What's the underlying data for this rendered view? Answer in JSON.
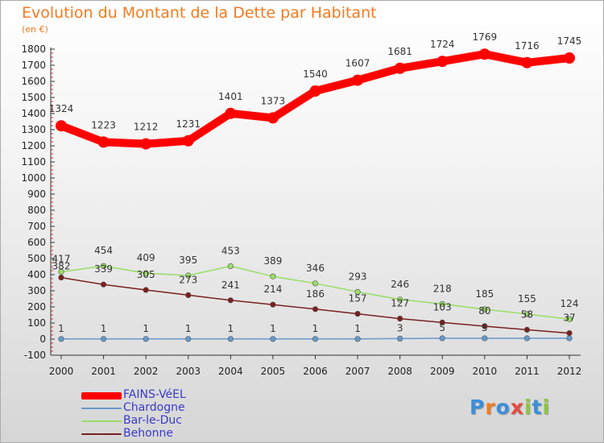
{
  "title": "Evolution du Montant de la Dette par Habitant",
  "unit_label": "(en €)",
  "logo": {
    "text": "Proxiti",
    "colors": [
      "#3b8fd9",
      "#f07d1f",
      "#3b8fd9",
      "#e94a3c",
      "#8dc63f",
      "#3b8fd9",
      "#8dc63f"
    ]
  },
  "chart_data": {
    "type": "line",
    "title": "Evolution du Montant de la Dette par Habitant",
    "ylabel": "(en €)",
    "xlabel": "",
    "x": [
      "2000",
      "2001",
      "2002",
      "2003",
      "2004",
      "2005",
      "2006",
      "2007",
      "2008",
      "2009",
      "2010",
      "2011",
      "2012"
    ],
    "ylim": [
      -100,
      1800
    ],
    "yticks": [
      -100,
      0,
      100,
      200,
      300,
      400,
      500,
      600,
      700,
      800,
      900,
      1000,
      1100,
      1200,
      1300,
      1400,
      1500,
      1600,
      1700,
      1800
    ],
    "grid": false,
    "legend_position": "bottom-left",
    "series": [
      {
        "name": "FAINS-VéEL",
        "color": "#ff0000",
        "values": [
          1324,
          1223,
          1212,
          1231,
          1401,
          1373,
          1540,
          1607,
          1681,
          1724,
          1769,
          1716,
          1745
        ]
      },
      {
        "name": "Chardogne",
        "color": "#6699cc",
        "values": [
          1,
          1,
          1,
          1,
          1,
          1,
          1,
          1,
          3,
          5,
          5,
          5,
          5
        ],
        "labels": [
          "1",
          "1",
          "1",
          "1",
          "1",
          "1",
          "1",
          "1",
          "3",
          "5",
          "5",
          "",
          ""
        ]
      },
      {
        "name": "Bar-le-Duc",
        "color": "#99dd66",
        "values": [
          417,
          454,
          409,
          395,
          453,
          389,
          346,
          293,
          246,
          218,
          185,
          155,
          124
        ]
      },
      {
        "name": "Behonne",
        "color": "#7a2020",
        "values": [
          382,
          339,
          305,
          273,
          241,
          214,
          186,
          157,
          127,
          103,
          80,
          58,
          37
        ],
        "labels": [
          "382",
          "339",
          "305",
          "273",
          "241",
          "214",
          "186",
          "157",
          "127",
          "103",
          "80",
          "58",
          "37"
        ]
      }
    ]
  }
}
